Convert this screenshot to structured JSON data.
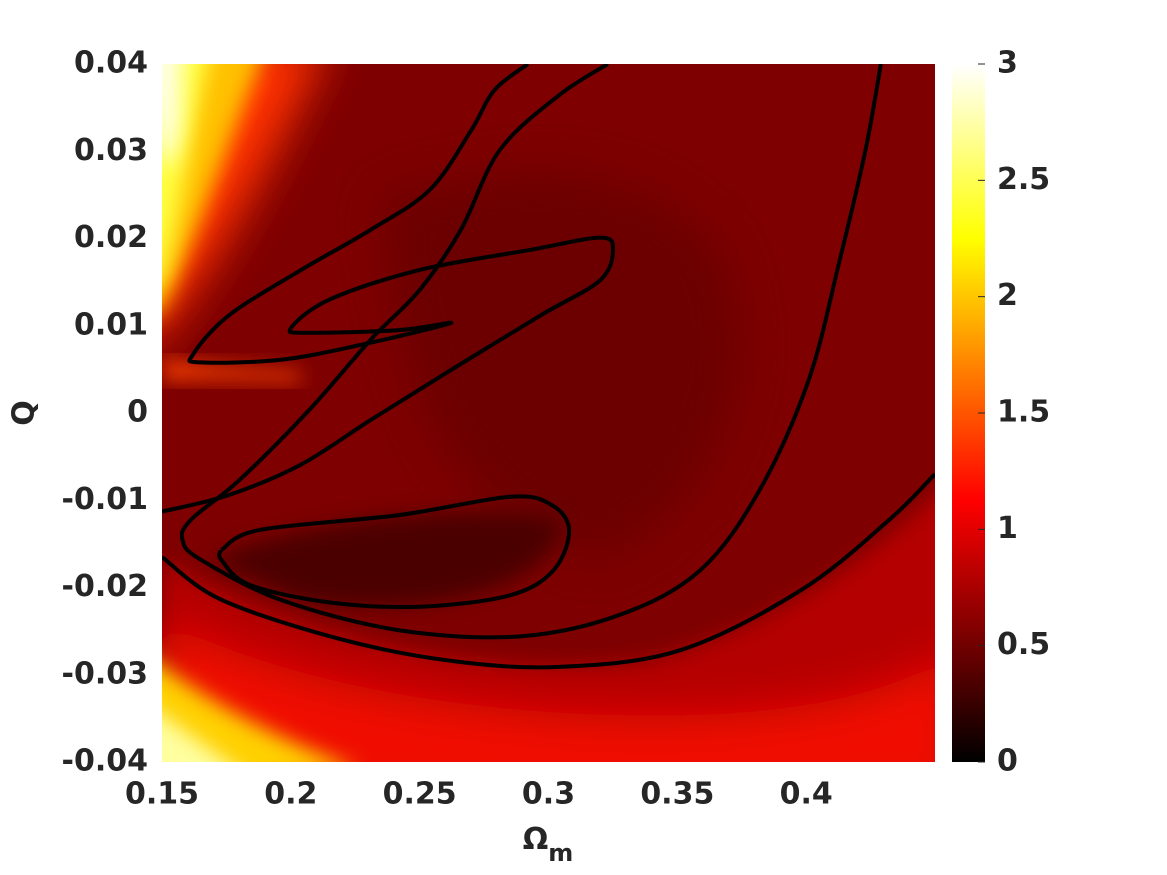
{
  "chart_data": {
    "type": "heatmap",
    "colormap": "hot",
    "xlabel": "Ω",
    "xlabel_sub": "m",
    "ylabel": "Q",
    "xlim": [
      0.15,
      0.45
    ],
    "ylim": [
      -0.04,
      0.04
    ],
    "xticks": [
      0.15,
      0.2,
      0.25,
      0.3,
      0.35,
      0.4
    ],
    "yticks": [
      -0.04,
      -0.03,
      -0.02,
      -0.01,
      0,
      0.01,
      0.02,
      0.03,
      0.04
    ],
    "clim": [
      0,
      3
    ],
    "cticks": [
      0,
      0.5,
      1,
      1.5,
      2,
      2.5,
      3
    ],
    "contour_color": "#000000",
    "contours": [
      {
        "x": [
          0.292,
          0.279,
          0.27,
          0.254,
          0.231,
          0.204,
          0.176,
          0.162,
          0.165,
          0.196,
          0.227,
          0.262,
          0.242,
          0.207,
          0.2,
          0.215,
          0.25,
          0.293,
          0.32,
          0.325,
          0.32,
          0.297,
          0.262,
          0.231,
          0.204,
          0.176,
          0.15
        ],
        "y": [
          0.04,
          0.037,
          0.0324,
          0.0256,
          0.021,
          0.0164,
          0.0112,
          0.0067,
          0.0058,
          0.0061,
          0.0078,
          0.0103,
          0.0095,
          0.0092,
          0.0097,
          0.013,
          0.0164,
          0.0187,
          0.0201,
          0.0187,
          0.0152,
          0.0112,
          0.0049,
          -0.0008,
          -0.0059,
          -0.0094,
          -0.0113
        ]
      },
      {
        "x": [
          0.323,
          0.304,
          0.281,
          0.266,
          0.25,
          0.231,
          0.207,
          0.18,
          0.161,
          0.158,
          0.165,
          0.196,
          0.242,
          0.289,
          0.328,
          0.359,
          0.382,
          0.401,
          0.413,
          0.423,
          0.429
        ],
        "y": [
          0.04,
          0.0364,
          0.0301,
          0.021,
          0.0141,
          0.0084,
          0.0003,
          -0.0077,
          -0.0123,
          -0.0146,
          -0.0168,
          -0.0214,
          -0.0249,
          -0.0256,
          -0.0231,
          -0.018,
          -0.0088,
          0.0038,
          0.0175,
          0.0301,
          0.04
        ]
      },
      {
        "x": [
          0.173,
          0.188,
          0.242,
          0.285,
          0.301,
          0.308,
          0.302,
          0.285,
          0.25,
          0.215,
          0.184,
          0.173,
          0.173
        ],
        "y": [
          -0.0157,
          -0.0134,
          -0.0117,
          -0.0096,
          -0.0105,
          -0.0134,
          -0.018,
          -0.0209,
          -0.0222,
          -0.0217,
          -0.0197,
          -0.0168,
          -0.0157
        ]
      },
      {
        "x": [
          0.15,
          0.173,
          0.219,
          0.262,
          0.304,
          0.351,
          0.398,
          0.432,
          0.45
        ],
        "y": [
          -0.0165,
          -0.0214,
          -0.0259,
          -0.0284,
          -0.0291,
          -0.0272,
          -0.0203,
          -0.0123,
          -0.007
        ]
      }
    ]
  }
}
